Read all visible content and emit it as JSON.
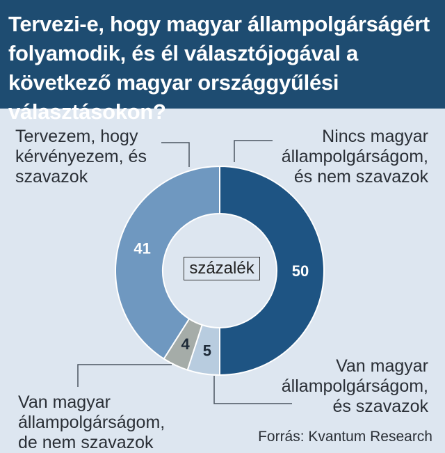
{
  "title": "Tervezi-e, hogy magyar állampolgárságért folyamodik, és él választójogával a következő magyar országgyűlési választásokon?",
  "center_label": "százalék",
  "source": "Forrás: Kvantum Research",
  "labels": {
    "planned": [
      "Tervezem, hogy",
      "kérvényezem, és",
      "szavazok"
    ],
    "no_cit": [
      "Nincs magyar",
      "állampolgárságom,",
      "és nem szavazok"
    ],
    "cit_vote": [
      "Van magyar",
      "állampolgárságom,",
      "és szavazok"
    ],
    "cit_novote": [
      "Van magyar",
      "állampolgárságom,",
      "de nem szavazok"
    ]
  },
  "chart_data": {
    "type": "pie",
    "donut": true,
    "unit": "százalék",
    "slices": [
      {
        "label": "Nincs magyar állampolgárságom, és nem szavazok",
        "value": 50,
        "value_label": "50",
        "color": "#1e5483"
      },
      {
        "label": "Van magyar állampolgárságom, és szavazok",
        "value": 5,
        "value_label": "5",
        "color": "#b8ccdf"
      },
      {
        "label": "Van magyar állampolgárságom, de nem szavazok",
        "value": 4,
        "value_label": "4",
        "color": "#a5aca8"
      },
      {
        "label": "Tervezem, hogy kérvényezem, és szavazok",
        "value": 41,
        "value_label": "41",
        "color": "#6f98c0"
      }
    ]
  }
}
